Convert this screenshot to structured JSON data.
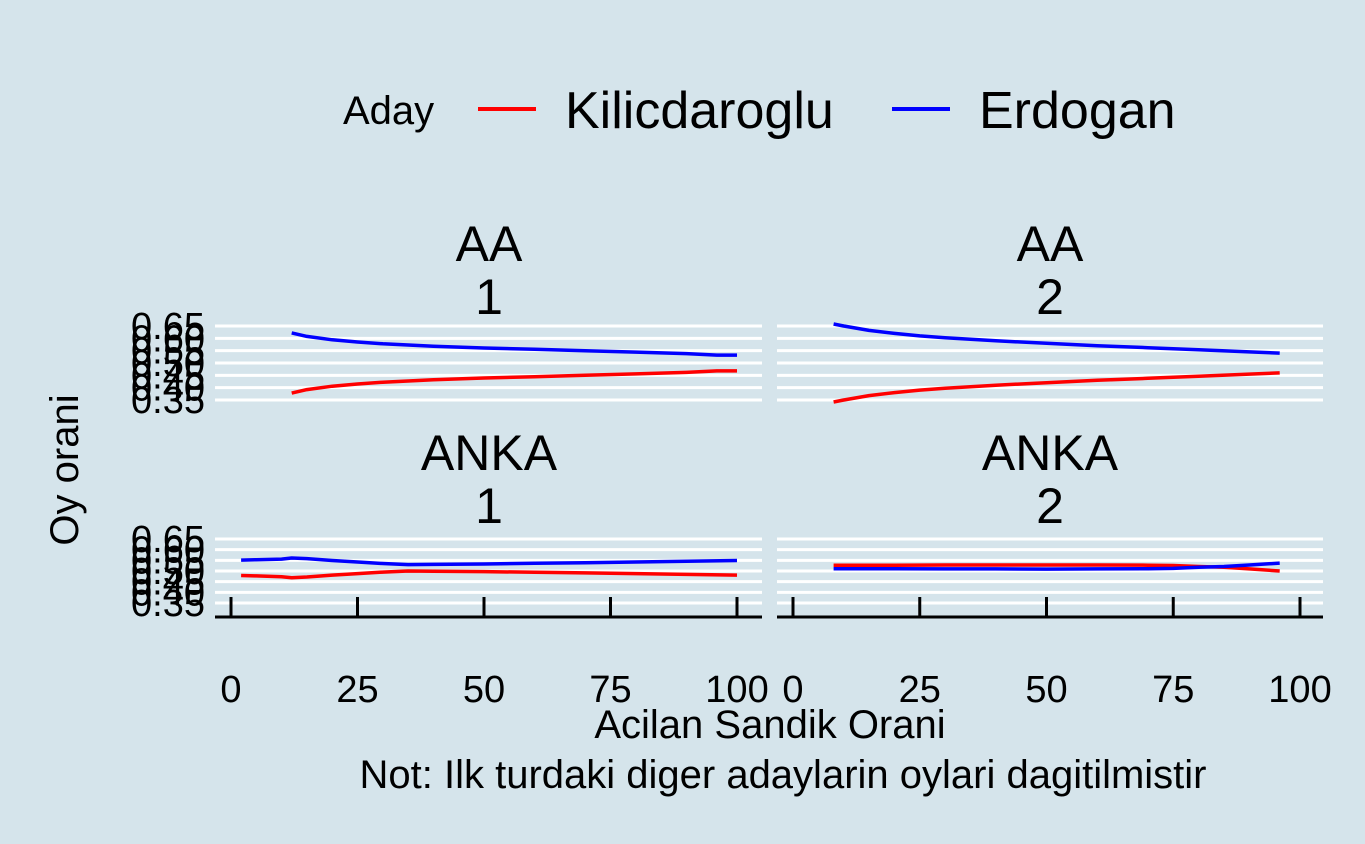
{
  "chart_data": {
    "type": "line",
    "layout": "facet-grid-2x2",
    "background_color": "#d5e4eb",
    "grid_color": "#ffffff",
    "legend": {
      "title": "Aday",
      "position": "top",
      "entries": [
        {
          "name": "Kilicdaroglu",
          "color": "#ff0000"
        },
        {
          "name": "Erdogan",
          "color": "#0000ff"
        }
      ]
    },
    "xlabel": "Acilan Sandik Orani",
    "ylabel": "Oy orani",
    "caption": "Not: Ilk turdaki diger adaylarin oylari dagitilmistir",
    "xlim": [
      0,
      100
    ],
    "xticks": [
      0,
      25,
      50,
      75,
      100
    ],
    "xtick_labels": [
      "0",
      "25",
      "50",
      "75",
      "100"
    ],
    "ylim": [
      0.35,
      0.65
    ],
    "yticks": [
      0.35,
      0.4,
      0.45,
      0.5,
      0.55,
      0.6,
      0.65
    ],
    "ytick_labels": [
      "0.35",
      "0.40",
      "0.45",
      "0.50",
      "0.55",
      "0.60",
      "0.65"
    ],
    "panels": [
      {
        "id": "aa-1",
        "strip": [
          "AA",
          "1"
        ],
        "series": [
          {
            "name": "Erdogan",
            "x": [
              12,
              15,
              20,
              25,
              30,
              40,
              50,
              60,
              70,
              80,
              90,
              96,
              100
            ],
            "y": [
              0.622,
              0.608,
              0.594,
              0.585,
              0.578,
              0.568,
              0.561,
              0.556,
              0.55,
              0.544,
              0.538,
              0.532,
              0.532
            ]
          },
          {
            "name": "Kilicdaroglu",
            "x": [
              12,
              15,
              20,
              25,
              30,
              40,
              50,
              60,
              70,
              80,
              90,
              96,
              100
            ],
            "y": [
              0.378,
              0.392,
              0.406,
              0.415,
              0.422,
              0.432,
              0.439,
              0.444,
              0.45,
              0.456,
              0.462,
              0.468,
              0.468
            ]
          }
        ]
      },
      {
        "id": "aa-2",
        "strip": [
          "AA",
          "2"
        ],
        "series": [
          {
            "name": "Erdogan",
            "x": [
              8,
              10,
              15,
              20,
              25,
              30,
              40,
              50,
              60,
              70,
              80,
              90,
              96
            ],
            "y": [
              0.658,
              0.65,
              0.632,
              0.62,
              0.61,
              0.602,
              0.59,
              0.58,
              0.57,
              0.562,
              0.554,
              0.545,
              0.54
            ]
          },
          {
            "name": "Kilicdaroglu",
            "x": [
              8,
              10,
              15,
              20,
              25,
              30,
              40,
              50,
              60,
              70,
              80,
              90,
              96
            ],
            "y": [
              0.342,
              0.35,
              0.368,
              0.38,
              0.39,
              0.398,
              0.41,
              0.42,
              0.43,
              0.438,
              0.446,
              0.455,
              0.46
            ]
          }
        ]
      },
      {
        "id": "anka-1",
        "strip": [
          "ANKA",
          "1"
        ],
        "series": [
          {
            "name": "Erdogan",
            "x": [
              2,
              5,
              10,
              12,
              15,
              20,
              25,
              30,
              35,
              40,
              50,
              60,
              70,
              80,
              90,
              100
            ],
            "y": [
              0.551,
              0.553,
              0.556,
              0.561,
              0.558,
              0.549,
              0.542,
              0.535,
              0.53,
              0.531,
              0.533,
              0.536,
              0.539,
              0.542,
              0.546,
              0.549
            ]
          },
          {
            "name": "Kilicdaroglu",
            "x": [
              2,
              5,
              10,
              12,
              15,
              20,
              25,
              30,
              35,
              40,
              50,
              60,
              70,
              80,
              90,
              100
            ],
            "y": [
              0.479,
              0.477,
              0.473,
              0.468,
              0.472,
              0.481,
              0.488,
              0.495,
              0.5,
              0.499,
              0.497,
              0.494,
              0.491,
              0.488,
              0.484,
              0.481
            ]
          }
        ]
      },
      {
        "id": "anka-2",
        "strip": [
          "ANKA",
          "2"
        ],
        "series": [
          {
            "name": "Kilicdaroglu",
            "x": [
              8,
              20,
              30,
              40,
              50,
              60,
              70,
              75,
              80,
              85,
              90,
              96
            ],
            "y": [
              0.527,
              0.527,
              0.528,
              0.528,
              0.528,
              0.528,
              0.527,
              0.526,
              0.521,
              0.518,
              0.51,
              0.5
            ]
          },
          {
            "name": "Erdogan",
            "x": [
              8,
              20,
              30,
              40,
              50,
              60,
              70,
              75,
              80,
              85,
              90,
              96
            ],
            "y": [
              0.511,
              0.511,
              0.51,
              0.51,
              0.509,
              0.51,
              0.511,
              0.512,
              0.518,
              0.521,
              0.528,
              0.537
            ]
          }
        ]
      }
    ]
  }
}
